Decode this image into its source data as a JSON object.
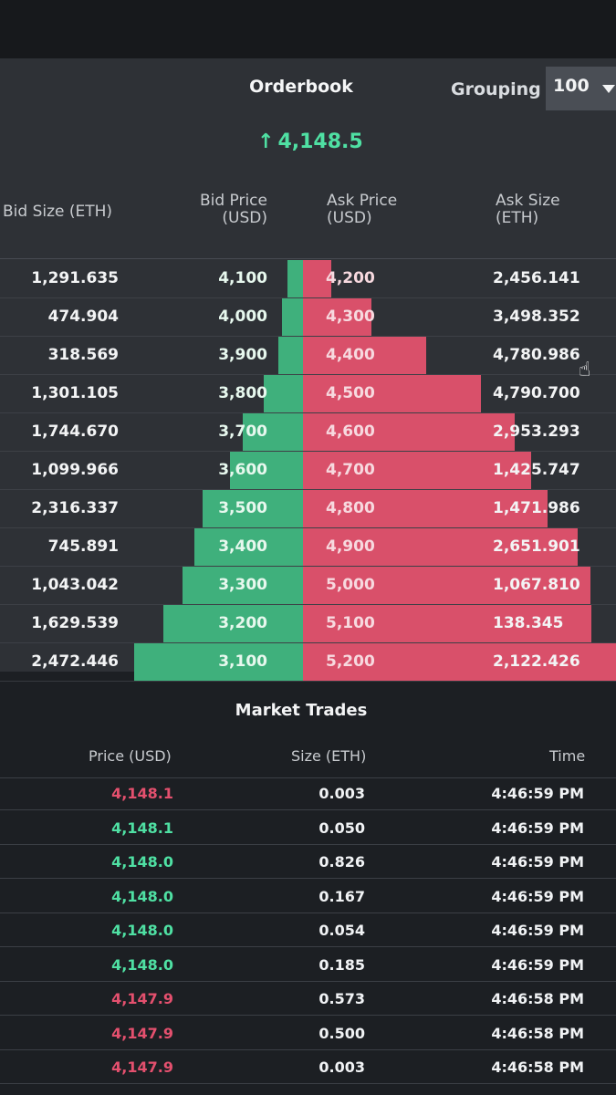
{
  "orderbook": {
    "title": "Orderbook",
    "grouping_label": "Grouping",
    "grouping_value": "100",
    "last_price": "4,148.5",
    "headers": {
      "bid_size": "Bid Size (ETH)",
      "bid_price_l1": "Bid Price",
      "bid_price_l2": "(USD)",
      "ask_price_l1": "Ask Price",
      "ask_price_l2": "(USD)",
      "ask_size_l1": "Ask Size",
      "ask_size_l2": "(ETH)"
    },
    "rows": [
      {
        "bid_size": "1,291.635",
        "bid_price": "4,100",
        "ask_price": "4,200",
        "ask_size": "2,456.141",
        "bid_depth": 1291.635,
        "ask_depth": 2456.141
      },
      {
        "bid_size": "474.904",
        "bid_price": "4,000",
        "ask_price": "4,300",
        "ask_size": "3,498.352",
        "bid_depth": 1766.539,
        "ask_depth": 5954.493
      },
      {
        "bid_size": "318.569",
        "bid_price": "3,900",
        "ask_price": "4,400",
        "ask_size": "4,780.986",
        "bid_depth": 2085.108,
        "ask_depth": 10735.479
      },
      {
        "bid_size": "1,301.105",
        "bid_price": "3,800",
        "ask_price": "4,500",
        "ask_size": "4,790.700",
        "bid_depth": 3386.213,
        "ask_depth": 15526.179
      },
      {
        "bid_size": "1,744.670",
        "bid_price": "3,700",
        "ask_price": "4,600",
        "ask_size": "2,953.293",
        "bid_depth": 5130.883,
        "ask_depth": 18479.472
      },
      {
        "bid_size": "1,099.966",
        "bid_price": "3,600",
        "ask_price": "4,700",
        "ask_size": "1,425.747",
        "bid_depth": 6230.849,
        "ask_depth": 19905.219
      },
      {
        "bid_size": "2,316.337",
        "bid_price": "3,500",
        "ask_price": "4,800",
        "ask_size": "1,471.986",
        "bid_depth": 8547.186,
        "ask_depth": 21377.205
      },
      {
        "bid_size": "745.891",
        "bid_price": "3,400",
        "ask_price": "4,900",
        "ask_size": "2,651.901",
        "bid_depth": 9293.077,
        "ask_depth": 24029.106
      },
      {
        "bid_size": "1,043.042",
        "bid_price": "3,300",
        "ask_price": "5,000",
        "ask_size": "1,067.810",
        "bid_depth": 10336.119,
        "ask_depth": 25096.916
      },
      {
        "bid_size": "1,629.539",
        "bid_price": "3,200",
        "ask_price": "5,100",
        "ask_size": "138.345",
        "bid_depth": 11965.658,
        "ask_depth": 25235.261
      },
      {
        "bid_size": "2,472.446",
        "bid_price": "3,100",
        "ask_price": "5,200",
        "ask_size": "2,122.426",
        "bid_depth": 14438.104,
        "ask_depth": 27357.687
      }
    ],
    "colors": {
      "bid": "#3fb07c",
      "ask": "#d9506a",
      "up": "#4fe0a3",
      "down": "#e4506e"
    }
  },
  "trades": {
    "title": "Market Trades",
    "headers": {
      "price": "Price (USD)",
      "size": "Size (ETH)",
      "time": "Time"
    },
    "rows": [
      {
        "price": "4,148.1",
        "size": "0.003",
        "time": "4:46:59 PM",
        "side": "sell"
      },
      {
        "price": "4,148.1",
        "size": "0.050",
        "time": "4:46:59 PM",
        "side": "buy"
      },
      {
        "price": "4,148.0",
        "size": "0.826",
        "time": "4:46:59 PM",
        "side": "buy"
      },
      {
        "price": "4,148.0",
        "size": "0.167",
        "time": "4:46:59 PM",
        "side": "buy"
      },
      {
        "price": "4,148.0",
        "size": "0.054",
        "time": "4:46:59 PM",
        "side": "buy"
      },
      {
        "price": "4,148.0",
        "size": "0.185",
        "time": "4:46:59 PM",
        "side": "buy"
      },
      {
        "price": "4,147.9",
        "size": "0.573",
        "time": "4:46:58 PM",
        "side": "sell"
      },
      {
        "price": "4,147.9",
        "size": "0.500",
        "time": "4:46:58 PM",
        "side": "sell"
      },
      {
        "price": "4,147.9",
        "size": "0.003",
        "time": "4:46:58 PM",
        "side": "sell"
      }
    ]
  }
}
